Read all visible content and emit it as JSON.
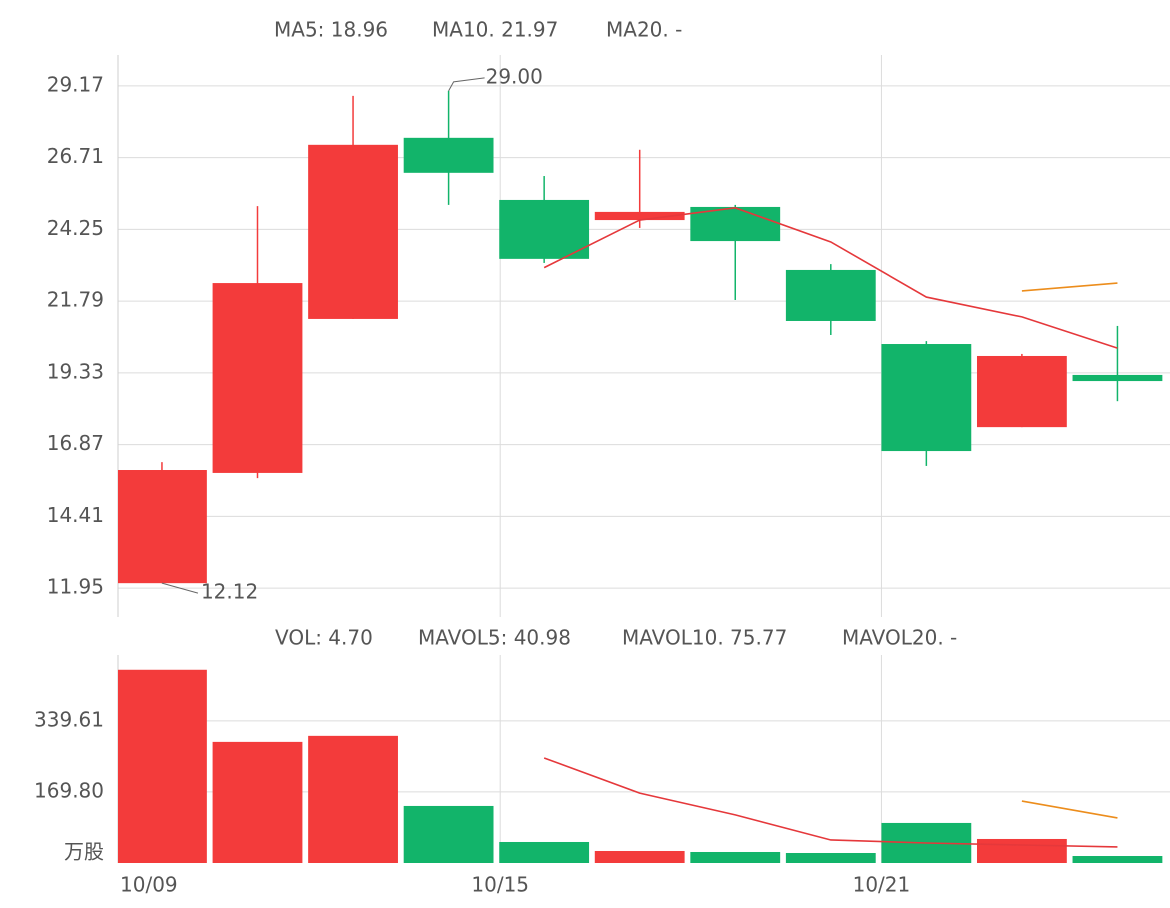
{
  "chart_data": [
    {
      "type": "candlestick",
      "xlim": [
        -0.46,
        10.55
      ],
      "ylim": [
        10.96,
        30.23
      ],
      "yticks": [
        29.17,
        26.71,
        24.25,
        21.79,
        19.33,
        16.87,
        14.41,
        11.95
      ],
      "open": [
        12.12,
        15.9,
        21.18,
        27.39,
        25.26,
        24.57,
        25.02,
        22.86,
        20.32,
        17.47,
        19.26
      ],
      "high": [
        16.27,
        25.05,
        28.83,
        29.0,
        26.08,
        26.98,
        25.09,
        23.06,
        20.42,
        19.98,
        20.94
      ],
      "low": [
        12.12,
        15.72,
        21.18,
        25.09,
        23.1,
        24.3,
        21.83,
        20.63,
        16.14,
        17.47,
        18.36
      ],
      "close": [
        16.0,
        22.41,
        27.15,
        26.19,
        23.24,
        24.85,
        23.85,
        21.11,
        16.65,
        19.91,
        19.05
      ],
      "up_color": "#f33b3b",
      "down_color": "#12b46a",
      "series": [
        {
          "label": "MA5: 18.96",
          "color": "#e5383b",
          "values": [
            null,
            null,
            null,
            null,
            22.94,
            24.57,
            24.99,
            23.82,
            21.93,
            21.25,
            20.18
          ]
        },
        {
          "label": "MA10. 21.97",
          "color": "#ec8d1c",
          "values": [
            null,
            null,
            null,
            null,
            null,
            null,
            null,
            null,
            null,
            22.14,
            22.41
          ]
        },
        {
          "label": "MA20. -",
          "color": "#1a87cc",
          "values": [
            null,
            null,
            null,
            null,
            null,
            null,
            null,
            null,
            null,
            null,
            null
          ]
        }
      ],
      "annotations": [
        {
          "label": "29.00",
          "x": 3,
          "y": 29.0,
          "side": "above"
        },
        {
          "label": "12.12",
          "x": 0,
          "y": 12.12,
          "side": "below"
        }
      ]
    },
    {
      "type": "bar",
      "xlim": [
        -0.46,
        10.55
      ],
      "ylim": [
        0,
        497
      ],
      "yticks": [
        339.61,
        {
          "value": 169.8,
          "label": "169.80"
        }
      ],
      "y_unit": "万股",
      "xticks": [
        {
          "value": -0.46,
          "label": "10/09"
        },
        {
          "value": 3.54,
          "label": "10/15"
        },
        {
          "value": 7.53,
          "label": "10/21"
        }
      ],
      "bar_label": {
        "label": "VOL: 4.70",
        "color": "#777788"
      },
      "values": [
        461.7,
        289.4,
        303.8,
        136.3,
        50.2,
        28.7,
        26.3,
        23.9,
        95.7,
        57.4,
        16.7
      ],
      "series": [
        {
          "label": "MAVOL5: 40.98",
          "color": "#e5383b",
          "values": [
            null,
            null,
            null,
            null,
            251,
            167,
            115,
            55,
            47.8,
            43,
            38.3
          ]
        },
        {
          "label": "MAVOL10. 75.77",
          "color": "#ec8d1c",
          "values": [
            null,
            null,
            null,
            null,
            null,
            null,
            null,
            null,
            null,
            148,
            107.6
          ]
        },
        {
          "label": "MAVOL20. -",
          "color": "#1a87cc",
          "values": [
            null,
            null,
            null,
            null,
            null,
            null,
            null,
            null,
            null,
            null,
            null
          ]
        }
      ]
    }
  ]
}
